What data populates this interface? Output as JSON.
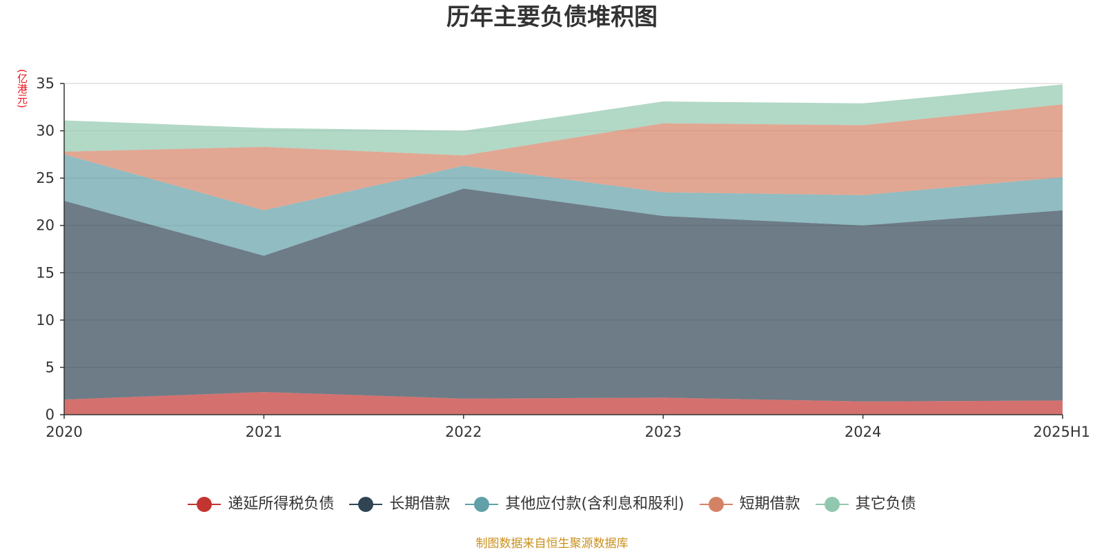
{
  "chart_data": {
    "type": "area",
    "stacked": true,
    "title": "历年主要负债堆积图",
    "ylabel": "(亿港元)",
    "xlabel": "",
    "categories": [
      "2020",
      "2021",
      "2022",
      "2023",
      "2024",
      "2025H1"
    ],
    "ylim": [
      0,
      35
    ],
    "yticks": [
      "0",
      "5",
      "10",
      "15",
      "20",
      "25",
      "30",
      "35"
    ],
    "grid": true,
    "legend_position": "bottom",
    "series": [
      {
        "name": "递延所得税负债",
        "color": "#c23531",
        "values": [
          1.6,
          2.4,
          1.7,
          1.8,
          1.4,
          1.5
        ]
      },
      {
        "name": "长期借款",
        "color": "#2f4554",
        "values": [
          21.0,
          14.4,
          22.2,
          19.2,
          18.6,
          20.1
        ]
      },
      {
        "name": "其他应付款(含利息和股利)",
        "color": "#61a0a8",
        "values": [
          4.9,
          4.8,
          2.4,
          2.5,
          3.2,
          3.5
        ]
      },
      {
        "name": "短期借款",
        "color": "#d48265",
        "values": [
          0.3,
          6.7,
          1.1,
          7.3,
          7.4,
          7.7
        ]
      },
      {
        "name": "其它负债",
        "color": "#91c7ae",
        "values": [
          3.3,
          2.0,
          2.6,
          2.3,
          2.3,
          2.1
        ]
      }
    ],
    "source_note": "制图数据来自恒生聚源数据库"
  }
}
